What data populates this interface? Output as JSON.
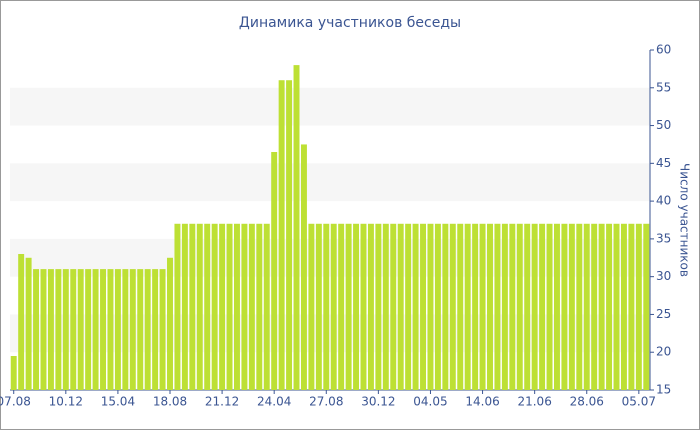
{
  "chart_data": {
    "type": "bar",
    "title": "Динамика участников беседы",
    "y_axis_label": "Число участников",
    "categories": [
      "07.08",
      null,
      null,
      null,
      null,
      null,
      null,
      "10.12",
      null,
      null,
      null,
      null,
      null,
      null,
      "15.04",
      null,
      null,
      null,
      null,
      null,
      null,
      "18.08",
      null,
      null,
      null,
      null,
      null,
      null,
      "21.12",
      null,
      null,
      null,
      null,
      null,
      null,
      "24.04",
      null,
      null,
      null,
      null,
      null,
      null,
      "27.08",
      null,
      null,
      null,
      null,
      null,
      null,
      "30.12",
      null,
      null,
      null,
      null,
      null,
      null,
      "04.05",
      null,
      null,
      null,
      null,
      null,
      null,
      "14.06",
      null,
      null,
      null,
      null,
      null,
      null,
      "21.06",
      null,
      null,
      null,
      null,
      null,
      null,
      "28.06",
      null,
      null,
      null,
      null,
      null,
      null,
      "05.07",
      null
    ],
    "values": [
      19.5,
      33,
      32.5,
      31,
      31,
      31,
      31,
      31,
      31,
      31,
      31,
      31,
      31,
      31,
      31,
      31,
      31,
      31,
      31,
      31,
      31,
      32.5,
      37,
      37,
      37,
      37,
      37,
      37,
      37,
      37,
      37,
      37,
      37,
      37,
      37,
      46.5,
      56,
      56,
      58,
      47.5,
      37,
      37,
      37,
      37,
      37,
      37,
      37,
      37,
      37,
      37,
      37,
      37,
      37,
      37,
      37,
      37,
      37,
      37,
      37,
      37,
      37,
      37,
      37,
      37,
      37,
      37,
      37,
      37,
      37,
      37,
      37,
      37,
      37,
      37,
      37,
      37,
      37,
      37,
      37,
      37,
      37,
      37,
      37,
      37,
      37,
      37
    ],
    "color": "#bde034",
    "ylim": [
      15,
      60
    ],
    "yticks": [
      15,
      20,
      25,
      30,
      35,
      40,
      45,
      50,
      55,
      60
    ],
    "grid": true
  }
}
